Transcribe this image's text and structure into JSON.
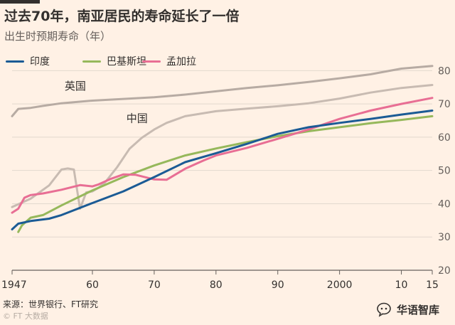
{
  "title": "过去70年，南亚居民的寿命延长了一倍",
  "subtitle": "出生时预期寿命（年）",
  "source": "来源：世界银行、FT研究",
  "credit": "© FT 大数据",
  "watermark": "华语智库",
  "chart_data": {
    "type": "line",
    "title": "过去70年，南亚居民的寿命延长了一倍",
    "subtitle": "出生时预期寿命（年）",
    "xlabel": "",
    "ylabel": "出生时预期寿命（年）",
    "xlim": [
      1947,
      2015
    ],
    "ylim": [
      20,
      82
    ],
    "x_ticks": [
      1947,
      1960,
      1970,
      1980,
      1990,
      2000,
      2010,
      2015
    ],
    "x_tick_labels": [
      "1947",
      "60",
      "70",
      "80",
      "90",
      "2000",
      "10",
      "15"
    ],
    "y_ticks": [
      20,
      30,
      40,
      50,
      60,
      70,
      80
    ],
    "y_axis_side": "right",
    "grid": true,
    "legend_position": "top-left",
    "series": [
      {
        "name": "印度",
        "color": "#1b5b95",
        "legend": true,
        "x": [
          1947,
          1948,
          1950,
          1953,
          1955,
          1960,
          1965,
          1970,
          1975,
          1980,
          1985,
          1990,
          1995,
          2000,
          2005,
          2010,
          2015
        ],
        "y": [
          32.3,
          34.0,
          34.8,
          35.5,
          36.6,
          40.2,
          43.7,
          48.0,
          52.5,
          55.2,
          58.0,
          61.0,
          63.0,
          64.3,
          65.5,
          66.8,
          68.0
        ]
      },
      {
        "name": "巴基斯坦",
        "color": "#96b85b",
        "legend": true,
        "x": [
          1948,
          1948.6,
          1950,
          1952,
          1955,
          1960,
          1965,
          1970,
          1975,
          1980,
          1985,
          1990,
          1995,
          2000,
          2005,
          2010,
          2015
        ],
        "y": [
          31.5,
          33.5,
          35.8,
          36.6,
          39.5,
          44.0,
          48.0,
          51.5,
          54.5,
          56.6,
          58.5,
          60.3,
          61.8,
          63.0,
          64.2,
          65.2,
          66.3
        ]
      },
      {
        "name": "孟加拉",
        "color": "#e86e94",
        "legend": true,
        "x": [
          1947,
          1948,
          1949,
          1950,
          1952,
          1955,
          1958,
          1960,
          1961,
          1963,
          1965,
          1967,
          1970,
          1972,
          1975,
          1978,
          1980,
          1985,
          1990,
          1995,
          2000,
          2005,
          2010,
          2015
        ],
        "y": [
          37.3,
          38.5,
          41.8,
          42.6,
          43.1,
          44.2,
          45.6,
          45.2,
          45.8,
          47.5,
          48.8,
          48.7,
          47.3,
          47.2,
          50.5,
          53.0,
          54.5,
          56.8,
          59.5,
          62.3,
          65.5,
          68.0,
          70.0,
          71.8
        ]
      },
      {
        "name": "英国",
        "color": "#b7aba3",
        "legend": false,
        "x": [
          1947,
          1948,
          1950,
          1952,
          1955,
          1960,
          1965,
          1970,
          1975,
          1980,
          1985,
          1990,
          1995,
          2000,
          2005,
          2010,
          2015
        ],
        "y": [
          66.3,
          68.5,
          68.8,
          69.4,
          70.2,
          71.0,
          71.5,
          72.0,
          72.8,
          73.8,
          74.8,
          75.6,
          76.6,
          77.7,
          78.9,
          80.6,
          81.4
        ]
      },
      {
        "name": "中国",
        "color": "#c8bbb2",
        "legend": false,
        "x": [
          1947,
          1950,
          1953,
          1955,
          1956,
          1957,
          1958,
          1959,
          1960,
          1961,
          1962,
          1964,
          1966,
          1968,
          1970,
          1972,
          1975,
          1980,
          1985,
          1990,
          1995,
          2000,
          2005,
          2010,
          2015
        ],
        "y": [
          39.0,
          41.5,
          45.5,
          50.3,
          50.6,
          50.3,
          38.5,
          43.4,
          43.7,
          44.8,
          46.3,
          51.0,
          56.5,
          59.8,
          62.3,
          64.3,
          66.3,
          67.8,
          68.6,
          69.3,
          70.2,
          71.6,
          73.4,
          74.8,
          75.7
        ]
      }
    ],
    "annotations": [
      {
        "text": "英国",
        "x": 1955.5,
        "y": 74.3
      },
      {
        "text": "中国",
        "x": 1965.5,
        "y": 64.6
      }
    ]
  }
}
